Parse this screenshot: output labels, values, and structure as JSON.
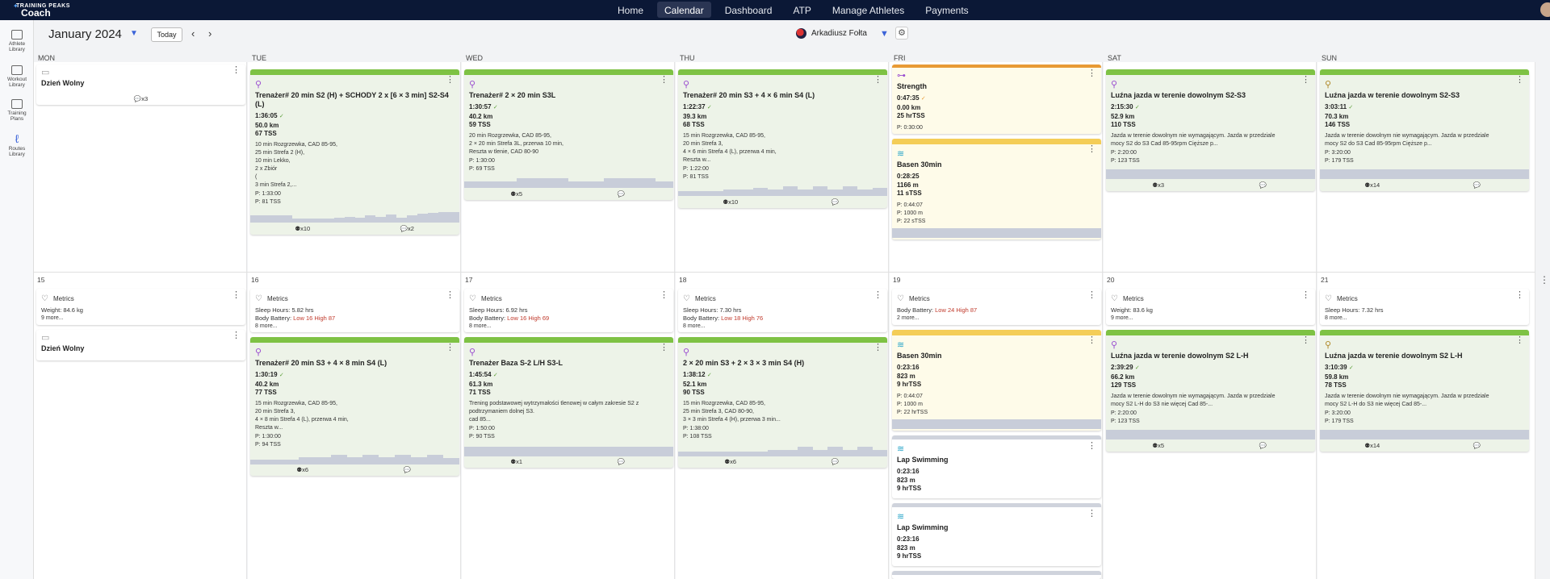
{
  "logo": {
    "line1": "TRAINING PEAKS",
    "line2": "Coach"
  },
  "nav": [
    "Home",
    "Calendar",
    "Dashboard",
    "ATP",
    "Manage Athletes",
    "Payments"
  ],
  "sidebar": [
    {
      "label1": "Athlete",
      "label2": "Library"
    },
    {
      "label1": "Workout",
      "label2": "Library"
    },
    {
      "label1": "Training",
      "label2": "Plans"
    },
    {
      "label1": "Routes",
      "label2": "Library"
    }
  ],
  "header": {
    "month": "January 2024",
    "today": "Today",
    "athlete": "Arkadiusz Fołta"
  },
  "days": [
    "MON",
    "TUE",
    "WED",
    "THU",
    "FRI",
    "SAT",
    "SUN"
  ],
  "week2_dates": [
    "15",
    "16",
    "17",
    "18",
    "19",
    "20",
    "21"
  ],
  "w1": {
    "mon": {
      "title": "Dzień Wolny",
      "comments": "x3"
    },
    "tue": {
      "title": "Trenażer# 20 min S2 (H) + SCHODY 2 x [6 × 3 min] S2-S4 (L)",
      "time": "1:36:05",
      "dist": "50.0 km",
      "tss": "67 TSS",
      "desc": [
        "10 min Rozgrzewka, CAD 85-95,",
        "25 min Strefa 2 (H),",
        "10 min Lekko,",
        "2 x Zbiór",
        "(",
        "3 min Strefa 2,..."
      ],
      "plan": [
        "P: 1:33:00",
        "P: 81 TSS"
      ],
      "foot_a": "x10",
      "foot_b": "x2"
    },
    "wed": {
      "title": "Trenażer# 2 × 20 min S3L",
      "time": "1:30:57",
      "dist": "40.2 km",
      "tss": "59 TSS",
      "desc": [
        "20 min Rozgrzewka, CAD 85-95,",
        "2 × 20 min Strefa 3L, przerwa 10 min,",
        "Reszta w tlenie, CAD 80-90"
      ],
      "plan": [
        "P: 1:30:00",
        "P: 69 TSS"
      ],
      "foot_a": "x5"
    },
    "thu": {
      "title": "Trenażer# 20 min S3 + 4 × 6 min S4 (L)",
      "time": "1:22:37",
      "dist": "39.3 km",
      "tss": "68 TSS",
      "desc": [
        "15 min Rozgrzewka, CAD 85-95,",
        "20 min Strefa 3,",
        "4 × 6 min Strefa 4 (L), przerwa 4 min,",
        "Reszta w..."
      ],
      "plan": [
        "P: 1:22:00",
        "P: 81 TSS"
      ],
      "foot_a": "x10"
    },
    "fri_strength": {
      "title": "Strength",
      "time": "0:47:35",
      "dist": "0.00 km",
      "tss": "25 hrTSS",
      "plan": [
        "P: 0:30:00"
      ]
    },
    "fri_swim": {
      "title": "Basen 30min",
      "time": "0:28:25",
      "dist": "1166 m",
      "tss": "11 sTSS",
      "plan": [
        "P: 0:44:07",
        "P: 1000 m",
        "P: 22 sTSS"
      ]
    },
    "sat": {
      "title": "Luźna jazda w terenie dowolnym S2-S3",
      "time": "2:15:30",
      "dist": "52.9 km",
      "tss": "110 TSS",
      "desc": [
        "Jazda w terenie dowolnym nie wymagającym. Jazda w przedziale",
        "mocy S2 do S3 Cad 85-95rpm Cięższe p..."
      ],
      "plan": [
        "P: 2:20:00",
        "P: 123 TSS"
      ],
      "foot_a": "x3"
    },
    "sun": {
      "title": "Luźna jazda w terenie dowolnym S2-S3",
      "time": "3:03:11",
      "dist": "70.3 km",
      "tss": "146 TSS",
      "desc": [
        "Jazda w terenie dowolnym nie wymagającym. Jazda w przedziale",
        "mocy S2 do S3 Cad 85-95rpm Cięższe p..."
      ],
      "plan": [
        "P: 3:20:00",
        "P: 179 TSS"
      ],
      "foot_a": "x14"
    }
  },
  "w2": {
    "metrics_label": "Metrics",
    "mon_metrics": {
      "l1": "Weight: 84.6 kg",
      "l2": "9 more..."
    },
    "mon_off": {
      "title": "Dzień Wolny"
    },
    "tue_metrics": {
      "l1": "Sleep Hours: 5.82 hrs",
      "l2a": "Body Battery: ",
      "l2b": "Low 16 High 87",
      "l3": "8 more..."
    },
    "wed_metrics": {
      "l1": "Sleep Hours: 6.92 hrs",
      "l2a": "Body Battery: ",
      "l2b": "Low 16 High 69",
      "l3": "8 more..."
    },
    "thu_metrics": {
      "l1": "Sleep Hours: 7.30 hrs",
      "l2a": "Body Battery: ",
      "l2b": "Low 18 High 76",
      "l3": "8 more..."
    },
    "fri_metrics": {
      "l1a": "Body Battery: ",
      "l1b": "Low 24 High 87",
      "l2": "2 more..."
    },
    "sat_metrics": {
      "l1": "Weight: 83.6 kg",
      "l2": "9 more..."
    },
    "sun_metrics": {
      "l1": "Sleep Hours: 7.32 hrs",
      "l2": "8 more..."
    },
    "tue": {
      "title": "Trenażer# 20 min S3 + 4 × 8 min S4 (L)",
      "time": "1:30:19",
      "dist": "40.2 km",
      "tss": "77 TSS",
      "desc": [
        "15 min Rozgrzewka, CAD 85-95,",
        "20 min Strefa 3,",
        "4 × 8 min Strefa 4 (L), przerwa 4 min,",
        "Reszta w..."
      ],
      "plan": [
        "P: 1:30:00",
        "P: 94 TSS"
      ],
      "foot_a": "x6"
    },
    "wed": {
      "title": "Trenażer Baza S-2 L/H S3-L",
      "time": "1:45:54",
      "dist": "61.3 km",
      "tss": "71 TSS",
      "desc": [
        "Trening podstawowej wytrzymałości tlenowej w całym zakresie S2 z",
        "podtrzymaniem dolnej S3.",
        "cad 85..."
      ],
      "plan": [
        "P: 1:50:00",
        "P: 90 TSS"
      ],
      "foot_a": "x1"
    },
    "thu": {
      "title": "2 × 20 min S3 + 2 × 3 × 3 min S4 (H)",
      "time": "1:38:12",
      "dist": "52.1 km",
      "tss": "90 TSS",
      "desc": [
        "15 min Rozgrzewka, CAD 85-95,",
        "25 min Strefa 3, CAD 80-90,",
        "3 × 3 min Strefa 4 (H), przerwa 3 min..."
      ],
      "plan": [
        "P: 1:38:00",
        "P: 108 TSS"
      ],
      "foot_a": "x6"
    },
    "fri_swim": {
      "title": "Basen 30min",
      "time": "0:23:16",
      "dist": "823 m",
      "tss": "9 hrTSS",
      "plan": [
        "P: 0:44:07",
        "P: 1000 m",
        "P: 22 hrTSS"
      ]
    },
    "fri_lap1": {
      "title": "Lap Swimming",
      "time": "0:23:16",
      "dist": "823 m",
      "tss": "9 hrTSS"
    },
    "fri_lap2": {
      "title": "Lap Swimming",
      "time": "0:23:16",
      "dist": "823 m",
      "tss": "9 hrTSS"
    },
    "sat": {
      "title": "Luźna jazda w terenie dowolnym S2 L-H",
      "time": "2:39:29",
      "dist": "66.2 km",
      "tss": "129 TSS",
      "desc": [
        "Jazda w terenie dowolnym nie wymagającym. Jazda w przedziale",
        "mocy S2 L-H do S3 nie więcej Cad 85-..."
      ],
      "plan": [
        "P: 2:20:00",
        "P: 123 TSS"
      ],
      "foot_a": "x5"
    },
    "sun": {
      "title": "Luźna jazda w terenie dowolnym S2 L-H",
      "time": "3:10:39",
      "dist": "59.8 km",
      "tss": "78 TSS",
      "desc": [
        "Jazda w terenie dowolnym nie wymagającym. Jazda w przedziale",
        "mocy S2 L-H do S3 nie więcej Cad 85-..."
      ],
      "plan": [
        "P: 3:20:00",
        "P: 179 TSS"
      ],
      "foot_a": "x14"
    }
  }
}
